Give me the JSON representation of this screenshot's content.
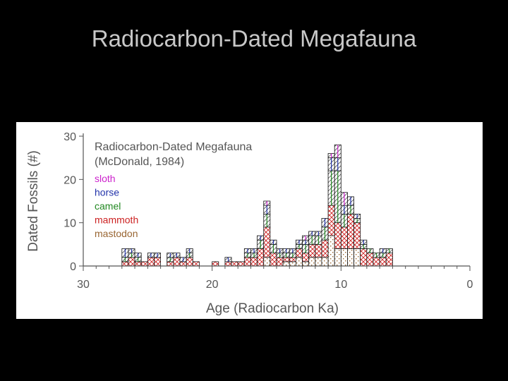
{
  "slide": {
    "title": "Radiocarbon-Dated Megafauna"
  },
  "chart_data": {
    "type": "bar",
    "stacked": true,
    "title": "Radiocarbon-Dated Megafauna",
    "subtitle": "(McDonald, 1984)",
    "xlabel": "Age (Radiocarbon Ka)",
    "ylabel": "Dated Fossils (#)",
    "xlim": [
      30,
      0
    ],
    "ylim": [
      0,
      30
    ],
    "x_ticks": [
      "30",
      "20",
      "10",
      "0"
    ],
    "y_ticks": [
      "0",
      "10",
      "20",
      "30"
    ],
    "bin_width_ka": 0.5,
    "legend_position": "top-left",
    "grid": false,
    "series": [
      {
        "name": "sloth",
        "color": "#cc22cc",
        "pattern": "hatch"
      },
      {
        "name": "horse",
        "color": "#2233aa",
        "pattern": "hatch"
      },
      {
        "name": "camel",
        "color": "#228822",
        "pattern": "hatch"
      },
      {
        "name": "mammoth",
        "color": "#cc2222",
        "pattern": "crosshatch"
      },
      {
        "name": "mastodon",
        "color": "#996633",
        "pattern": "dots"
      }
    ],
    "bins": [
      {
        "age": 26.75,
        "values": [
          0,
          2,
          1,
          1,
          0
        ]
      },
      {
        "age": 26.25,
        "values": [
          0,
          1,
          1,
          2,
          0
        ]
      },
      {
        "age": 25.75,
        "values": [
          0,
          1,
          1,
          1,
          0
        ]
      },
      {
        "age": 25.25,
        "values": [
          0,
          0,
          0,
          1,
          0
        ]
      },
      {
        "age": 24.75,
        "values": [
          0,
          1,
          0,
          2,
          0
        ]
      },
      {
        "age": 24.25,
        "values": [
          0,
          1,
          0,
          2,
          0
        ]
      },
      {
        "age": 23.25,
        "values": [
          0,
          1,
          1,
          1,
          0
        ]
      },
      {
        "age": 22.75,
        "values": [
          0,
          1,
          0,
          2,
          0
        ]
      },
      {
        "age": 22.25,
        "values": [
          0,
          1,
          0,
          1,
          0
        ]
      },
      {
        "age": 21.75,
        "values": [
          0,
          1,
          1,
          2,
          0
        ]
      },
      {
        "age": 21.25,
        "values": [
          0,
          0,
          0,
          1,
          0
        ]
      },
      {
        "age": 19.75,
        "values": [
          0,
          0,
          0,
          1,
          0
        ]
      },
      {
        "age": 18.75,
        "values": [
          0,
          1,
          0,
          1,
          0
        ]
      },
      {
        "age": 18.25,
        "values": [
          0,
          0,
          0,
          1,
          0
        ]
      },
      {
        "age": 17.75,
        "values": [
          0,
          0,
          0,
          1,
          0
        ]
      },
      {
        "age": 17.25,
        "values": [
          0,
          1,
          1,
          2,
          0
        ]
      },
      {
        "age": 16.75,
        "values": [
          0,
          1,
          1,
          2,
          0
        ]
      },
      {
        "age": 16.25,
        "values": [
          0,
          1,
          2,
          4,
          0
        ]
      },
      {
        "age": 15.75,
        "values": [
          1,
          2,
          3,
          7,
          2
        ]
      },
      {
        "age": 15.25,
        "values": [
          0,
          1,
          2,
          3,
          0
        ]
      },
      {
        "age": 14.75,
        "values": [
          0,
          1,
          1,
          2,
          0
        ]
      },
      {
        "age": 14.25,
        "values": [
          0,
          1,
          1,
          1,
          1
        ]
      },
      {
        "age": 13.75,
        "values": [
          0,
          1,
          1,
          1,
          1
        ]
      },
      {
        "age": 13.25,
        "values": [
          0,
          1,
          1,
          2,
          2
        ]
      },
      {
        "age": 12.75,
        "values": [
          1,
          1,
          2,
          2,
          1
        ]
      },
      {
        "age": 12.25,
        "values": [
          0,
          1,
          2,
          3,
          2
        ]
      },
      {
        "age": 11.75,
        "values": [
          0,
          1,
          2,
          3,
          2
        ]
      },
      {
        "age": 11.25,
        "values": [
          0,
          2,
          3,
          4,
          2
        ]
      },
      {
        "age": 10.75,
        "values": [
          1,
          3,
          8,
          7,
          7
        ]
      },
      {
        "age": 10.25,
        "values": [
          3,
          3,
          12,
          6,
          4
        ]
      },
      {
        "age": 9.75,
        "values": [
          3,
          2,
          3,
          5,
          4
        ]
      },
      {
        "age": 9.25,
        "values": [
          0,
          2,
          2,
          8,
          4
        ]
      },
      {
        "age": 8.75,
        "values": [
          0,
          1,
          1,
          6,
          4
        ]
      },
      {
        "age": 8.25,
        "values": [
          0,
          1,
          1,
          4,
          0
        ]
      },
      {
        "age": 7.75,
        "values": [
          0,
          0,
          1,
          3,
          0
        ]
      },
      {
        "age": 7.25,
        "values": [
          0,
          0,
          1,
          2,
          0
        ]
      },
      {
        "age": 6.75,
        "values": [
          0,
          1,
          1,
          2,
          0
        ]
      },
      {
        "age": 6.25,
        "values": [
          0,
          0,
          1,
          3,
          0
        ]
      }
    ]
  }
}
